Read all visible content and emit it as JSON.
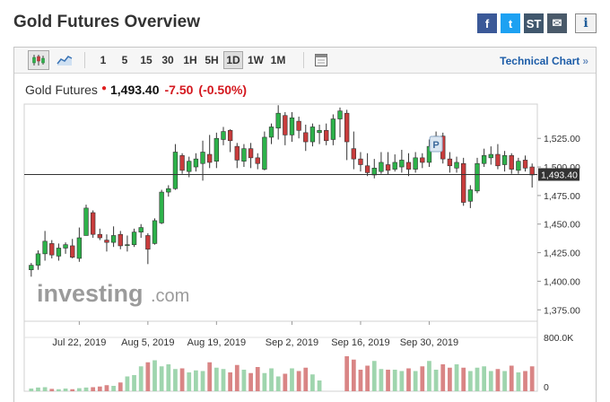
{
  "page": {
    "title": "Gold Futures Overview"
  },
  "share": [
    {
      "name": "facebook-icon",
      "glyph": "f",
      "color": "#3b5998"
    },
    {
      "name": "twitter-icon",
      "glyph": "t",
      "color": "#1da1f2"
    },
    {
      "name": "stocktwits-icon",
      "glyph": "ST",
      "color": "#40576d"
    },
    {
      "name": "email-icon",
      "glyph": "✉",
      "color": "#4a5a6a"
    }
  ],
  "info": {
    "glyph": "i",
    "icon": "info-icon"
  },
  "toolbar": {
    "chart_types": [
      {
        "name": "candlestick-chart-button",
        "icon": "candlestick-icon",
        "selected": true
      },
      {
        "name": "area-chart-button",
        "icon": "area-chart-icon",
        "selected": false
      }
    ],
    "timeframes": [
      {
        "label": "1",
        "selected": false
      },
      {
        "label": "5",
        "selected": false
      },
      {
        "label": "15",
        "selected": false
      },
      {
        "label": "30",
        "selected": false
      },
      {
        "label": "1H",
        "selected": false
      },
      {
        "label": "5H",
        "selected": false
      },
      {
        "label": "1D",
        "selected": true
      },
      {
        "label": "1W",
        "selected": false
      },
      {
        "label": "1M",
        "selected": false
      }
    ],
    "calendar_icon": "calendar-icon",
    "technical_chart": "Technical Chart",
    "technical_chart_chevron": "»"
  },
  "quote": {
    "name": "Gold Futures",
    "marker": "●",
    "last": "1,493.40",
    "change": "-7.50",
    "change_pct": "(-0.50%)"
  },
  "watermark": {
    "brand": "investing",
    "suffix": ".com"
  },
  "colors": {
    "up": "#28a745",
    "down": "#d23f3f",
    "up_fill": "#2db24a",
    "down_fill": "#c93c3c",
    "vol_up": "#9fd5ae",
    "vol_down": "#d98585",
    "link": "#1d5da8"
  },
  "chart_data": {
    "type": "candlestick",
    "current_price": 1493.4,
    "current_price_label": "1,493.40",
    "annotation": "P",
    "y_ticks": [
      "1,525.00",
      "1,500.00",
      "1,475.00",
      "1,450.00",
      "1,425.00",
      "1,400.00",
      "1,375.00"
    ],
    "y_tick_values": [
      1525,
      1500,
      1475,
      1450,
      1425,
      1400,
      1375
    ],
    "x_ticks": [
      "Jul 22, 2019",
      "Aug 5, 2019",
      "Aug 19, 2019",
      "Sep 2, 2019",
      "Sep 16, 2019",
      "Sep 30, 2019"
    ],
    "x_tick_index": [
      7,
      17,
      27,
      38,
      48,
      58
    ],
    "ylim": [
      1365,
      1555
    ],
    "volume_ticks": [
      "800.0K",
      "0"
    ],
    "volume_max": 800,
    "candles": [
      [
        1410,
        1414,
        1404,
        1416
      ],
      [
        1414,
        1424,
        1410,
        1427
      ],
      [
        1424,
        1435,
        1418,
        1444
      ],
      [
        1433,
        1423,
        1420,
        1436
      ],
      [
        1422,
        1429,
        1418,
        1433
      ],
      [
        1429,
        1432,
        1424,
        1434
      ],
      [
        1431,
        1421,
        1420,
        1437
      ],
      [
        1420,
        1438,
        1417,
        1447
      ],
      [
        1440,
        1464,
        1440,
        1467
      ],
      [
        1460,
        1441,
        1438,
        1462
      ],
      [
        1441,
        1438,
        1436,
        1446
      ],
      [
        1436,
        1434,
        1426,
        1441
      ],
      [
        1434,
        1440,
        1430,
        1448
      ],
      [
        1441,
        1431,
        1428,
        1444
      ],
      [
        1432,
        1432,
        1426,
        1440
      ],
      [
        1432,
        1443,
        1430,
        1446
      ],
      [
        1443,
        1447,
        1438,
        1450
      ],
      [
        1440,
        1428,
        1415,
        1442
      ],
      [
        1433,
        1453,
        1432,
        1455
      ],
      [
        1451,
        1478,
        1450,
        1480
      ],
      [
        1478,
        1481,
        1474,
        1484
      ],
      [
        1481,
        1513,
        1480,
        1520
      ],
      [
        1510,
        1497,
        1494,
        1512
      ],
      [
        1496,
        1505,
        1491,
        1509
      ],
      [
        1500,
        1507,
        1496,
        1512
      ],
      [
        1503,
        1513,
        1488,
        1523
      ],
      [
        1511,
        1504,
        1499,
        1528
      ],
      [
        1505,
        1525,
        1499,
        1530
      ],
      [
        1524,
        1531,
        1519,
        1535
      ],
      [
        1532,
        1523,
        1513,
        1533
      ],
      [
        1518,
        1506,
        1499,
        1521
      ],
      [
        1505,
        1516,
        1500,
        1520
      ],
      [
        1516,
        1508,
        1499,
        1521
      ],
      [
        1508,
        1503,
        1498,
        1512
      ],
      [
        1498,
        1526,
        1497,
        1531
      ],
      [
        1526,
        1535,
        1520,
        1538
      ],
      [
        1534,
        1547,
        1524,
        1554
      ],
      [
        1545,
        1528,
        1519,
        1548
      ],
      [
        1528,
        1543,
        1522,
        1548
      ],
      [
        1540,
        1532,
        1525,
        1544
      ],
      [
        1530,
        1522,
        1514,
        1537
      ],
      [
        1522,
        1535,
        1518,
        1538
      ],
      [
        1530,
        1532,
        1520,
        1537
      ],
      [
        1532,
        1523,
        1519,
        1538
      ],
      [
        1524,
        1542,
        1519,
        1546
      ],
      [
        1542,
        1549,
        1526,
        1552
      ],
      [
        1547,
        1522,
        1506,
        1550
      ],
      [
        1516,
        1507,
        1498,
        1531
      ],
      [
        1507,
        1502,
        1496,
        1513
      ],
      [
        1501,
        1495,
        1492,
        1512
      ],
      [
        1493,
        1499,
        1490,
        1507
      ],
      [
        1496,
        1504,
        1494,
        1513
      ],
      [
        1502,
        1497,
        1493,
        1513
      ],
      [
        1498,
        1504,
        1496,
        1511
      ],
      [
        1500,
        1506,
        1495,
        1515
      ],
      [
        1504,
        1498,
        1492,
        1512
      ],
      [
        1498,
        1508,
        1495,
        1513
      ],
      [
        1508,
        1504,
        1499,
        1512
      ],
      [
        1504,
        1518,
        1500,
        1524
      ],
      [
        1516,
        1527,
        1515,
        1531
      ],
      [
        1527,
        1507,
        1503,
        1530
      ],
      [
        1507,
        1501,
        1495,
        1513
      ],
      [
        1499,
        1504,
        1495,
        1509
      ],
      [
        1503,
        1469,
        1466,
        1508
      ],
      [
        1470,
        1480,
        1464,
        1484
      ],
      [
        1479,
        1503,
        1477,
        1508
      ],
      [
        1503,
        1510,
        1500,
        1516
      ],
      [
        1508,
        1511,
        1502,
        1518
      ],
      [
        1511,
        1501,
        1498,
        1520
      ],
      [
        1502,
        1510,
        1496,
        1514
      ],
      [
        1510,
        1498,
        1494,
        1512
      ],
      [
        1497,
        1505,
        1494,
        1508
      ],
      [
        1506,
        1499,
        1496,
        1510
      ],
      [
        1500,
        1493,
        1482,
        1503
      ]
    ],
    "volume": [
      40,
      55,
      60,
      35,
      30,
      40,
      30,
      45,
      55,
      60,
      70,
      90,
      80,
      130,
      220,
      240,
      370,
      430,
      460,
      370,
      400,
      330,
      340,
      280,
      310,
      300,
      430,
      350,
      330,
      280,
      390,
      320,
      270,
      360,
      270,
      340,
      220,
      260,
      340,
      300,
      350,
      250,
      160,
      0,
      0,
      0,
      520,
      470,
      320,
      380,
      450,
      330,
      320,
      320,
      300,
      340,
      300,
      370,
      450,
      320,
      400,
      350,
      400,
      350,
      300,
      350,
      370,
      300,
      330,
      300,
      380,
      280,
      300,
      370
    ],
    "annotation_index": 59
  }
}
